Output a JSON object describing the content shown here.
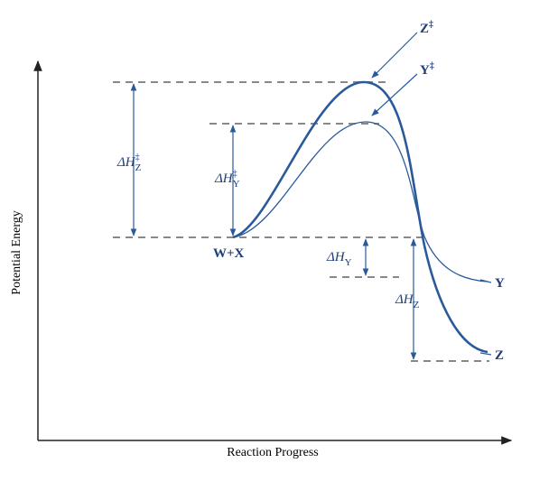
{
  "axes": {
    "y_label": "Potential Energy",
    "x_label": "Reaction Progress"
  },
  "species": {
    "reactants": "W+X",
    "ts_z": {
      "base": "Z",
      "sup": "‡"
    },
    "ts_y": {
      "base": "Y",
      "sup": "‡"
    },
    "product_y": "Y",
    "product_z": "Z"
  },
  "energies": {
    "activation_z": {
      "symbol": "ΔH",
      "sup": "‡",
      "sub": "Z"
    },
    "activation_y": {
      "symbol": "ΔH",
      "sup": "‡",
      "sub": "Y"
    },
    "reaction_y": {
      "symbol": "ΔH",
      "sub": "Y"
    },
    "reaction_z": {
      "symbol": "ΔH",
      "sub": "Z"
    }
  }
}
